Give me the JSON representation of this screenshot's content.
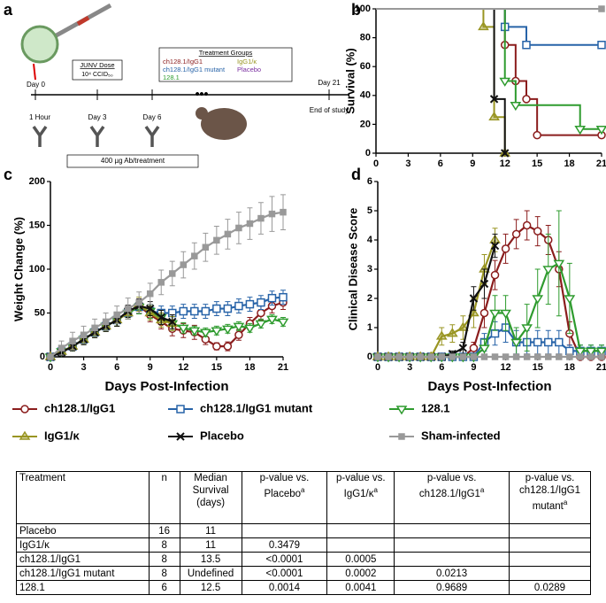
{
  "panel_labels": [
    "a",
    "b",
    "c",
    "d"
  ],
  "schematic": {
    "day0": "Day 0",
    "dose_title": "JUNV Dose",
    "dose_amount": "10⁴ CCID₅₀",
    "groups_title": "Treatment Groups",
    "groups": [
      {
        "name": "ch128.1/IgG1",
        "color": "#8b1d1d"
      },
      {
        "name": "IgG1/κ",
        "color": "#999522"
      },
      {
        "name": "ch128.1/IgG1 mutant",
        "color": "#2763a8"
      },
      {
        "name": "Placebo",
        "color": "#7a2fa0"
      },
      {
        "name": "128.1",
        "color": "#2e9b2e"
      }
    ],
    "ellipsis": "•••",
    "day21": "Day 21",
    "end": "End of study",
    "times": [
      "1 Hour",
      "Day 3",
      "Day 6"
    ],
    "antibody": "400 µg Ab/treatment"
  },
  "chart_data": [
    {
      "type": "step",
      "ylabel": "Survival (%)",
      "xlim": [
        0,
        21
      ],
      "xticks": [
        0,
        3,
        6,
        9,
        12,
        15,
        18,
        21
      ],
      "ylim": [
        0,
        100
      ],
      "yticks": [
        0,
        20,
        40,
        60,
        80,
        100
      ],
      "series": [
        {
          "name": "ch128.1/IgG1",
          "color": "#8b1d1d",
          "marker": "circle",
          "x": [
            0,
            12,
            13,
            14,
            15,
            21
          ],
          "values": [
            100,
            75,
            50,
            37.5,
            12.5,
            12.5
          ]
        },
        {
          "name": "ch128.1/IgG1 mutant",
          "color": "#2763a8",
          "marker": "square",
          "x": [
            0,
            12,
            14,
            21
          ],
          "values": [
            100,
            87.5,
            75,
            75
          ]
        },
        {
          "name": "128.1",
          "color": "#2e9b2e",
          "marker": "tri-down",
          "x": [
            0,
            12,
            13,
            19,
            21
          ],
          "values": [
            100,
            50,
            33.3,
            16.7,
            16.7
          ]
        },
        {
          "name": "IgG1/κ",
          "color": "#999522",
          "marker": "tri-up",
          "x": [
            0,
            10,
            11,
            12
          ],
          "values": [
            100,
            87.5,
            25,
            0
          ]
        },
        {
          "name": "Placebo",
          "color": "#111111",
          "marker": "cross",
          "x": [
            0,
            11,
            12
          ],
          "values": [
            100,
            37.5,
            0
          ]
        },
        {
          "name": "Sham-infected",
          "color": "#999999",
          "marker": "filled-square",
          "x": [
            0,
            21
          ],
          "values": [
            100,
            100
          ]
        }
      ]
    },
    {
      "type": "line",
      "ylabel": "Weight Change (%)",
      "xlabel": "Days Post-Infection",
      "xlim": [
        0,
        21
      ],
      "xticks": [
        0,
        3,
        6,
        9,
        12,
        15,
        18,
        21
      ],
      "ylim": [
        0,
        200
      ],
      "yticks": [
        0,
        50,
        100,
        150,
        200
      ],
      "x": [
        0,
        1,
        2,
        3,
        4,
        5,
        6,
        7,
        8,
        9,
        10,
        11,
        12,
        13,
        14,
        15,
        16,
        17,
        18,
        19,
        20,
        21
      ],
      "series": [
        {
          "name": "ch128.1/IgG1",
          "color": "#8b1d1d",
          "marker": "circle",
          "values": [
            0,
            6,
            12,
            20,
            28,
            35,
            42,
            50,
            58,
            48,
            40,
            32,
            30,
            28,
            20,
            12,
            12,
            25,
            38,
            50,
            58,
            62
          ],
          "errors": [
            2,
            4,
            5,
            6,
            6,
            6,
            7,
            7,
            8,
            8,
            8,
            8,
            8,
            8,
            6,
            4,
            5,
            6,
            7,
            8,
            8,
            8
          ]
        },
        {
          "name": "ch128.1/IgG1 mutant",
          "color": "#2763a8",
          "marker": "square",
          "values": [
            0,
            6,
            12,
            20,
            28,
            35,
            42,
            50,
            57,
            52,
            50,
            50,
            52,
            52,
            52,
            55,
            55,
            58,
            60,
            62,
            67,
            68
          ],
          "errors": [
            2,
            4,
            5,
            6,
            6,
            6,
            7,
            7,
            8,
            8,
            8,
            8,
            8,
            8,
            8,
            8,
            8,
            8,
            8,
            8,
            8,
            8
          ]
        },
        {
          "name": "128.1",
          "color": "#2e9b2e",
          "marker": "tri-down",
          "values": [
            0,
            6,
            12,
            20,
            28,
            35,
            42,
            50,
            57,
            52,
            45,
            38,
            33,
            30,
            28,
            30,
            32,
            35,
            33,
            38,
            43,
            40
          ],
          "errors": [
            2,
            4,
            5,
            6,
            6,
            6,
            7,
            7,
            8,
            8,
            8,
            8,
            6,
            5,
            5,
            5,
            5,
            5,
            5,
            5,
            5,
            5
          ]
        },
        {
          "name": "IgG1/κ",
          "color": "#999522",
          "marker": "tri-up",
          "values": [
            0,
            6,
            12,
            20,
            28,
            35,
            42,
            50,
            60,
            50,
            42,
            38,
            null,
            null,
            null,
            null,
            null,
            null,
            null,
            null,
            null,
            null
          ],
          "errors": [
            2,
            4,
            5,
            6,
            6,
            6,
            7,
            7,
            8,
            8,
            8,
            8,
            null,
            null,
            null,
            null,
            null,
            null,
            null,
            null,
            null,
            null
          ]
        },
        {
          "name": "Placebo",
          "color": "#111111",
          "marker": "cross",
          "values": [
            0,
            5,
            12,
            20,
            28,
            35,
            42,
            52,
            58,
            55,
            45,
            40,
            null,
            null,
            null,
            null,
            null,
            null,
            null,
            null,
            null,
            null
          ],
          "errors": [
            2,
            4,
            5,
            6,
            6,
            6,
            7,
            7,
            8,
            8,
            8,
            8,
            null,
            null,
            null,
            null,
            null,
            null,
            null,
            null,
            null,
            null
          ]
        },
        {
          "name": "Sham-infected",
          "color": "#999999",
          "marker": "filled-square",
          "values": [
            0,
            10,
            18,
            25,
            33,
            40,
            48,
            55,
            62,
            72,
            85,
            95,
            105,
            115,
            125,
            133,
            140,
            147,
            152,
            158,
            163,
            165
          ],
          "errors": [
            3,
            8,
            10,
            10,
            10,
            10,
            10,
            12,
            12,
            12,
            14,
            14,
            15,
            15,
            16,
            16,
            17,
            18,
            18,
            18,
            20,
            20
          ]
        }
      ]
    },
    {
      "type": "line",
      "ylabel": "Clinical Disease Score",
      "xlabel": "Days Post-Infection",
      "xlim": [
        0,
        21
      ],
      "xticks": [
        0,
        3,
        6,
        9,
        12,
        15,
        18,
        21
      ],
      "ylim": [
        0,
        6
      ],
      "yticks": [
        0,
        1,
        2,
        3,
        4,
        5,
        6
      ],
      "x": [
        0,
        1,
        2,
        3,
        4,
        5,
        6,
        7,
        8,
        9,
        10,
        11,
        12,
        13,
        14,
        15,
        16,
        17,
        18,
        19,
        20,
        21
      ],
      "series": [
        {
          "name": "ch128.1/IgG1",
          "color": "#8b1d1d",
          "marker": "circle",
          "values": [
            0,
            0,
            0,
            0,
            0,
            0,
            0,
            0,
            0,
            0.3,
            1.5,
            2.8,
            3.7,
            4.2,
            4.5,
            4.3,
            4.0,
            3.0,
            0.8,
            0,
            0,
            0
          ],
          "errors": [
            0,
            0,
            0,
            0,
            0,
            0,
            0,
            0,
            0,
            0.2,
            0.5,
            0.5,
            0.5,
            0.5,
            0.5,
            0.5,
            0.5,
            0.6,
            0.4,
            0,
            0,
            0
          ]
        },
        {
          "name": "ch128.1/IgG1 mutant",
          "color": "#2763a8",
          "marker": "square",
          "values": [
            0,
            0,
            0,
            0,
            0,
            0,
            0,
            0,
            0,
            0,
            0.5,
            0.8,
            1.0,
            0.5,
            0.5,
            0.5,
            0.5,
            0.5,
            0.2,
            0.2,
            0.2,
            0.2
          ],
          "errors": [
            0,
            0,
            0,
            0,
            0,
            0,
            0,
            0,
            0,
            0,
            0.3,
            0.4,
            0.5,
            0.4,
            0.4,
            0.4,
            0.4,
            0.4,
            0.2,
            0.2,
            0.2,
            0.2
          ]
        },
        {
          "name": "128.1",
          "color": "#2e9b2e",
          "marker": "tri-down",
          "values": [
            0,
            0,
            0,
            0,
            0,
            0,
            0,
            0,
            0,
            0,
            0.3,
            1.5,
            1.5,
            0.5,
            1.0,
            2.0,
            3.0,
            3.2,
            2.0,
            0.2,
            0.2,
            0.2
          ],
          "errors": [
            0,
            0,
            0,
            0,
            0,
            0,
            0,
            0,
            0,
            0,
            0.3,
            0.6,
            0.6,
            0.5,
            0.8,
            1.0,
            1.2,
            1.8,
            1.2,
            0.2,
            0.2,
            0.2
          ]
        },
        {
          "name": "IgG1/κ",
          "color": "#999522",
          "marker": "tri-up",
          "values": [
            0,
            0,
            0,
            0,
            0,
            0,
            0.7,
            0.8,
            1.0,
            1.5,
            3.0,
            4.0,
            null,
            null,
            null,
            null,
            null,
            null,
            null,
            null,
            null,
            null
          ],
          "errors": [
            0,
            0,
            0,
            0,
            0,
            0,
            0.3,
            0.3,
            0.4,
            0.5,
            0.5,
            0.4,
            null,
            null,
            null,
            null,
            null,
            null,
            null,
            null,
            null,
            null
          ]
        },
        {
          "name": "Placebo",
          "color": "#111111",
          "marker": "cross",
          "values": [
            0,
            0,
            0,
            0,
            0,
            0,
            0,
            0.1,
            0.3,
            2.0,
            2.5,
            3.8,
            null,
            null,
            null,
            null,
            null,
            null,
            null,
            null,
            null,
            null
          ],
          "errors": [
            0,
            0,
            0,
            0,
            0,
            0,
            0,
            0.1,
            0.2,
            0.4,
            0.5,
            0.4,
            null,
            null,
            null,
            null,
            null,
            null,
            null,
            null,
            null,
            null
          ]
        },
        {
          "name": "Sham-infected",
          "color": "#999999",
          "marker": "filled-square",
          "values": [
            0,
            0,
            0,
            0,
            0,
            0,
            0,
            0,
            0,
            0,
            0,
            0,
            0,
            0,
            0,
            0,
            0,
            0,
            0,
            0,
            0,
            0
          ],
          "errors": [
            0,
            0,
            0,
            0,
            0,
            0,
            0,
            0,
            0,
            0,
            0,
            0,
            0,
            0,
            0,
            0,
            0,
            0,
            0,
            0,
            0,
            0
          ]
        }
      ]
    }
  ],
  "table": {
    "header": [
      "Treatment",
      "n",
      "Median Survival (days)",
      {
        "text": "p-value vs. Placebo",
        "note": "a"
      },
      {
        "text": "p-value vs. IgG1/κ",
        "note": "a"
      },
      {
        "text": "p-value vs. ch128.1/IgG1",
        "note": "a"
      },
      {
        "text": "p-value vs. ch128.1/IgG1 mutant",
        "note": "a"
      }
    ],
    "rows": [
      [
        "Placebo",
        "16",
        "11"
      ],
      [
        "IgG1/κ",
        "8",
        "11",
        "0.3479"
      ],
      [
        "ch128.1/IgG1",
        "8",
        "13.5",
        "<0.0001",
        "0.0005"
      ],
      [
        "ch128.1/IgG1 mutant",
        "8",
        "Undefined",
        "<0.0001",
        "0.0002",
        "0.0213"
      ],
      [
        "128.1",
        "6",
        "12.5",
        "0.0014",
        "0.0041",
        "0.9689",
        "0.0289"
      ]
    ]
  }
}
